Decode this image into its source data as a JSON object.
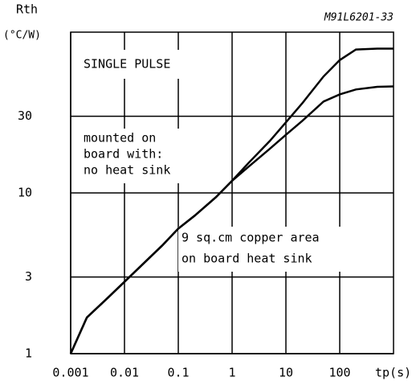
{
  "chart_data": {
    "type": "line",
    "code": "M91L6201-33",
    "ylabel": "Rth",
    "yunit": "(°C/W)",
    "xlabel": "tp(s)",
    "annotations": [
      "SINGLE PULSE",
      "mounted on",
      "board with:",
      "no heat sink",
      "9 sq.cm copper area",
      "on board heat sink"
    ],
    "log_x": true,
    "log_y": true,
    "grid": true,
    "xlim": [
      0.001,
      1000
    ],
    "ylim": [
      1,
      100
    ],
    "xticks": [
      0.001,
      0.01,
      0.1,
      1,
      10,
      100
    ],
    "yticks": [
      1,
      3,
      10,
      30
    ],
    "x": [
      0.001,
      0.002,
      0.005,
      0.01,
      0.02,
      0.05,
      0.1,
      0.2,
      0.5,
      1,
      2,
      5,
      10,
      20,
      50,
      100,
      200,
      500,
      1000
    ],
    "series": [
      {
        "color": "#000000",
        "values": [
          1,
          1.68,
          2.24,
          2.8,
          3.5,
          4.7,
          6,
          7.2,
          9.4,
          11.9,
          15.3,
          21,
          27.5,
          36,
          53,
          67,
          78,
          79,
          79
        ]
      },
      {
        "color": "#000000",
        "values": [
          1,
          1.68,
          2.24,
          2.8,
          3.5,
          4.7,
          6,
          7.2,
          9.4,
          11.9,
          14.5,
          18.8,
          23,
          28,
          37,
          41,
          44,
          45.7,
          46
        ]
      }
    ]
  }
}
